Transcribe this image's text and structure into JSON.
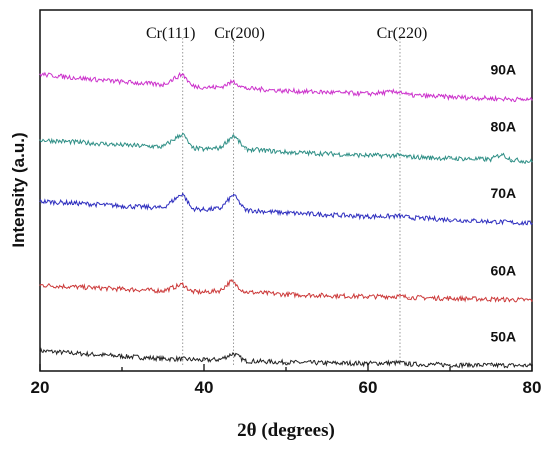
{
  "chart_data": {
    "type": "line",
    "title": "",
    "xlabel": "2θ (degrees)",
    "ylabel": "Intensity (a.u.)",
    "xlim": [
      20,
      80
    ],
    "ylim": [
      0,
      100
    ],
    "x_ticks": [
      "20",
      "40",
      "60",
      "80"
    ],
    "x_minor_step": 10,
    "grid": false,
    "legend": "none",
    "y_tick_labels": false,
    "peak_annotations": [
      {
        "label": "Cr(111)",
        "x": 37.4
      },
      {
        "label": "Cr(200)",
        "x": 43.6
      },
      {
        "label": "Cr(220)",
        "x": 63.9
      }
    ],
    "series": [
      {
        "name": "50A",
        "color": "#222222",
        "points": [
          [
            20,
            5.6
          ],
          [
            25,
            4.8
          ],
          [
            30,
            4.1
          ],
          [
            35,
            3.4
          ],
          [
            37.4,
            3.3
          ],
          [
            40,
            3.0
          ],
          [
            42,
            3.2
          ],
          [
            43.6,
            4.9
          ],
          [
            45,
            2.8
          ],
          [
            50,
            2.4
          ],
          [
            55,
            2.2
          ],
          [
            60,
            2.1
          ],
          [
            63.9,
            2.3
          ],
          [
            65,
            1.9
          ],
          [
            70,
            1.7
          ],
          [
            75,
            1.6
          ],
          [
            80,
            1.5
          ]
        ]
      },
      {
        "name": "60A",
        "color": "#cc3a3a",
        "points": [
          [
            20,
            23.8
          ],
          [
            25,
            23.2
          ],
          [
            30,
            22.7
          ],
          [
            35,
            22.2
          ],
          [
            37.4,
            24.0
          ],
          [
            38.5,
            22.0
          ],
          [
            40,
            21.8
          ],
          [
            42,
            22.3
          ],
          [
            43.3,
            24.9
          ],
          [
            45,
            21.9
          ],
          [
            50,
            21.2
          ],
          [
            55,
            20.9
          ],
          [
            60,
            20.6
          ],
          [
            63.9,
            20.7
          ],
          [
            65,
            20.4
          ],
          [
            70,
            20.1
          ],
          [
            75,
            19.9
          ],
          [
            80,
            19.6
          ]
        ]
      },
      {
        "name": "70A",
        "color": "#2f2fbf",
        "points": [
          [
            20,
            47.0
          ],
          [
            25,
            46.4
          ],
          [
            30,
            45.7
          ],
          [
            35,
            45.2
          ],
          [
            37.4,
            49.2
          ],
          [
            38.5,
            45.0
          ],
          [
            40,
            44.7
          ],
          [
            42,
            45.0
          ],
          [
            43.6,
            48.9
          ],
          [
            45,
            44.6
          ],
          [
            50,
            43.8
          ],
          [
            55,
            43.3
          ],
          [
            60,
            42.8
          ],
          [
            63.9,
            42.9
          ],
          [
            65,
            42.5
          ],
          [
            70,
            41.9
          ],
          [
            75,
            41.4
          ],
          [
            80,
            40.9
          ]
        ]
      },
      {
        "name": "80A",
        "color": "#2f8f86",
        "points": [
          [
            20,
            64.0
          ],
          [
            25,
            63.3
          ],
          [
            30,
            62.6
          ],
          [
            35,
            62.1
          ],
          [
            37.4,
            65.8
          ],
          [
            38.5,
            61.8
          ],
          [
            40,
            61.4
          ],
          [
            42,
            61.8
          ],
          [
            43.6,
            65.4
          ],
          [
            45,
            61.5
          ],
          [
            50,
            60.6
          ],
          [
            55,
            60.2
          ],
          [
            60,
            59.7
          ],
          [
            63.9,
            59.7
          ],
          [
            65,
            59.3
          ],
          [
            70,
            58.9
          ],
          [
            75,
            58.6
          ],
          [
            76.3,
            60.1
          ],
          [
            77.5,
            58.5
          ],
          [
            80,
            58.0
          ]
        ]
      },
      {
        "name": "90A",
        "color": "#cc33cc",
        "points": [
          [
            20,
            82.2
          ],
          [
            25,
            81.1
          ],
          [
            30,
            80.1
          ],
          [
            35,
            79.3
          ],
          [
            37.4,
            82.3
          ],
          [
            38.5,
            79.0
          ],
          [
            40,
            78.6
          ],
          [
            42,
            78.6
          ],
          [
            43.6,
            80.2
          ],
          [
            45,
            78.3
          ],
          [
            50,
            77.6
          ],
          [
            55,
            77.2
          ],
          [
            60,
            76.8
          ],
          [
            63.9,
            77.4
          ],
          [
            65,
            76.4
          ],
          [
            70,
            75.9
          ],
          [
            75,
            75.5
          ],
          [
            80,
            75.1
          ]
        ]
      }
    ]
  }
}
